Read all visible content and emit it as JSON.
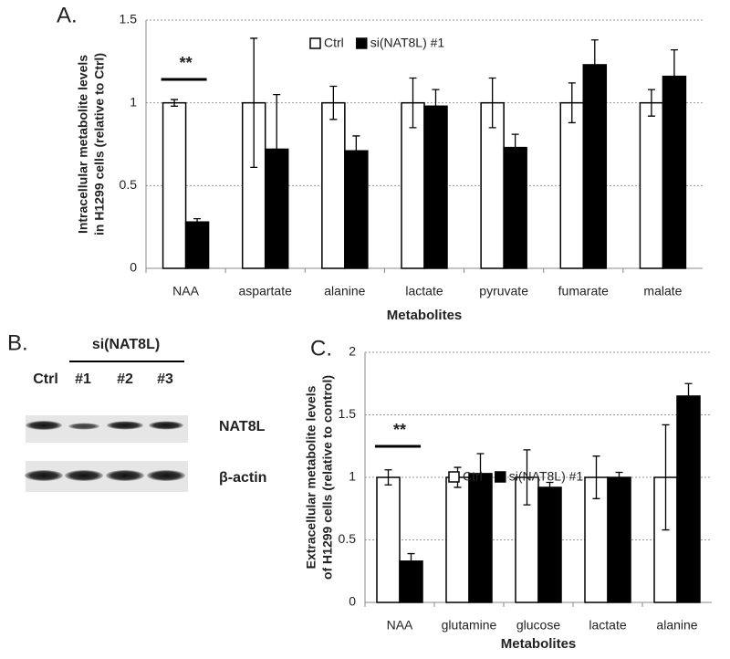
{
  "chart_data": [
    {
      "type": "bar",
      "panel": "A.",
      "ylabel": [
        "Intracellular metabolite levels",
        "in H1299 cells (relative to Ctrl)"
      ],
      "xlabel": "Metabolites",
      "categories": [
        "NAA",
        "aspartate",
        "alanine",
        "lactate",
        "pyruvate",
        "fumarate",
        "malate"
      ],
      "series": [
        {
          "name": "Ctrl",
          "color": "#ffffff",
          "values": [
            1,
            1,
            1,
            1,
            1,
            1,
            1
          ],
          "errors": [
            0.02,
            0.39,
            0.1,
            0.15,
            0.15,
            0.12,
            0.08
          ]
        },
        {
          "name": "si(NAT8L) #1",
          "color": "#000000",
          "values": [
            0.28,
            0.72,
            0.71,
            0.98,
            0.73,
            1.23,
            1.16
          ],
          "errors": [
            0.02,
            0.33,
            0.09,
            0.1,
            0.08,
            0.15,
            0.16
          ]
        }
      ],
      "ylim": [
        0,
        1.5
      ],
      "yticks": [
        0,
        0.5,
        1,
        1.5
      ],
      "grid": true,
      "annotation": "**"
    },
    {
      "type": "bar",
      "panel": "C.",
      "ylabel": [
        "Extracellular metabolite levels",
        "of H1299 cells (relative to control)"
      ],
      "xlabel": "Metabolites",
      "categories": [
        "NAA",
        "glutamine",
        "glucose",
        "lactate",
        "alanine"
      ],
      "series": [
        {
          "name": "Ctrl",
          "color": "#ffffff",
          "values": [
            1,
            1,
            1,
            1,
            1
          ],
          "errors": [
            0.06,
            0.08,
            0.22,
            0.17,
            0.42
          ]
        },
        {
          "name": "si(NAT8L) #1",
          "color": "#000000",
          "values": [
            0.33,
            1.03,
            0.92,
            1.0,
            1.65
          ],
          "errors": [
            0.06,
            0.16,
            0.04,
            0.04,
            0.1
          ]
        }
      ],
      "ylim": [
        0,
        2
      ],
      "yticks": [
        0,
        0.5,
        1,
        1.5,
        2
      ],
      "grid": true,
      "annotation": "**"
    }
  ],
  "blot": {
    "panel": "B.",
    "group": "si(NAT8L)",
    "lanes": [
      "Ctrl",
      "#1",
      "#2",
      "#3"
    ],
    "bands": [
      "NAT8L",
      "β-actin"
    ]
  }
}
